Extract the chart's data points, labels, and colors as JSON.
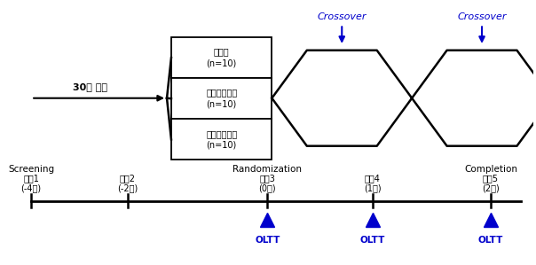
{
  "bg_color": "#ffffff",
  "black": "#000000",
  "blue": "#0000cc",
  "enrollment_text": "30명 등록",
  "box_labels": [
    "대조군\n(n=10)",
    "저용량시험군\n(n=10)",
    "고용량시험군\n(n=10)"
  ],
  "crossover_labels": [
    "Crossover",
    "Crossover"
  ],
  "visit_labels": [
    "방문1",
    "방문2",
    "방문3",
    "방문4",
    "방문5"
  ],
  "visit_sub1": [
    "(-4주)",
    "(-2주)",
    "(0주)",
    "(1주)",
    "(2주)"
  ],
  "visit_sub2": [
    "Screening",
    "",
    "Randomization",
    "",
    "Completion"
  ],
  "oltt_label": "OLTT"
}
